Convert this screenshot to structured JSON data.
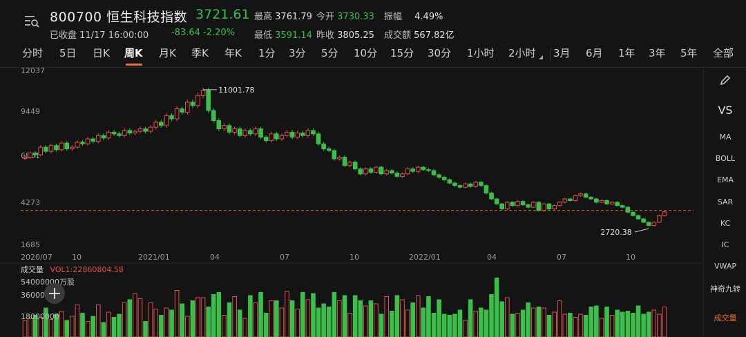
{
  "header": {
    "code_name": "800700 恒生科技指数",
    "price": "3721.61",
    "status": "已收盘 11/17 16:00:00",
    "change": "-83.64  -2.20%",
    "stats": {
      "high_label": "最高",
      "high": "3761.79",
      "open_label": "今开",
      "open": "3730.33",
      "amp_label": "振幅",
      "amp": "4.49%",
      "low_label": "最低",
      "low": "3591.14",
      "prev_label": "昨收",
      "prev": "3805.25",
      "turnover_label": "成交额",
      "turnover": "567.82亿"
    }
  },
  "tabs": [
    "分时",
    "5日",
    "日K",
    "周K",
    "月K",
    "季K",
    "年K",
    "1分",
    "3分",
    "5分",
    "10分",
    "15分",
    "30分",
    "1小时",
    "2小时",
    "3月",
    "6月",
    "1年",
    "3年",
    "5年",
    "全部"
  ],
  "active_tab": "周K",
  "right_panel": {
    "edit_icon": "pencil-icon",
    "vs": "VS",
    "indicators": [
      "MA",
      "BOLL",
      "EMA",
      "SAR",
      "KC",
      "IC",
      "VWAP",
      "神奇九转"
    ],
    "volume": "成交量"
  },
  "colors": {
    "up": "#e05050",
    "down": "#3bbf4a",
    "accent": "#e0702b",
    "bg": "#141414"
  },
  "chart_data": {
    "type": "candlestick",
    "y_ticks": [
      "12037",
      "9449",
      "6861",
      "4273",
      "1685"
    ],
    "x_ticks": [
      "2020/07",
      "10",
      "2021/01",
      "04",
      "07",
      "10",
      "2022/01",
      "04",
      "07",
      "10"
    ],
    "ylim": [
      1685,
      12037
    ],
    "annotations": {
      "high": "11001.78",
      "low": "2720.38"
    },
    "ref_line": 3805.25,
    "candles_close": [
      7000,
      7250,
      7150,
      7600,
      7350,
      7700,
      7450,
      7850,
      7500,
      7600,
      7900,
      7800,
      8100,
      7950,
      8300,
      8150,
      8500,
      8400,
      8300,
      8600,
      8450,
      8550,
      8700,
      8550,
      8800,
      9100,
      8900,
      9500,
      9300,
      9900,
      9700,
      10300,
      10100,
      10700,
      11000,
      9800,
      9200,
      8700,
      8900,
      8500,
      8700,
      8300,
      8600,
      8400,
      8700,
      8200,
      8000,
      8400,
      8100,
      8300,
      8500,
      8200,
      8450,
      8300,
      8600,
      8400,
      7800,
      7500,
      7400,
      6900,
      7000,
      6500,
      6700,
      6300,
      6000,
      6300,
      6100,
      6400,
      6000,
      6200,
      6050,
      5850,
      6000,
      6300,
      6150,
      6400,
      6250,
      6200,
      5950,
      5800,
      5650,
      5450,
      5300,
      5200,
      5400,
      5250,
      5500,
      5300,
      4850,
      4500,
      4200,
      3900,
      4300,
      4100,
      4350,
      4150,
      4000,
      4300,
      3800,
      4200,
      3900,
      4100,
      4300,
      4500,
      4400,
      4700,
      4800,
      4600,
      4500,
      4300,
      4400,
      4200,
      4300,
      4100,
      4000,
      3700,
      3500,
      3300,
      3100,
      2900,
      3100,
      3500,
      3721.61
    ],
    "volume_title": "成交量",
    "volume_value": "VOL1:22860804.58",
    "volume_y_ticks": [
      "54000000万股",
      "36000000",
      "18000000"
    ],
    "volume_bars": [
      16,
      18,
      21,
      19,
      28,
      17,
      22,
      25,
      16,
      20,
      31,
      23,
      15,
      20,
      31,
      14,
      24,
      19,
      22,
      33,
      36,
      42,
      37,
      15,
      33,
      27,
      21,
      28,
      26,
      45,
      32,
      20,
      35,
      38,
      38,
      29,
      41,
      43,
      21,
      33,
      39,
      26,
      18,
      40,
      33,
      43,
      23,
      35,
      35,
      28,
      44,
      35,
      27,
      43,
      36,
      42,
      28,
      32,
      29,
      43,
      35,
      40,
      23,
      40,
      35,
      30,
      35,
      32,
      22,
      39,
      25,
      40,
      36,
      26,
      33,
      40,
      28,
      39,
      23,
      36,
      22,
      21,
      22,
      26,
      16,
      36,
      25,
      28,
      26,
      41,
      57,
      34,
      38,
      22,
      23,
      26,
      33,
      28,
      29,
      28,
      21,
      24,
      35,
      22,
      23,
      19,
      22,
      21,
      29,
      30,
      18,
      29,
      21,
      26,
      24,
      25,
      23,
      30,
      22,
      24,
      26,
      22,
      29
    ],
    "volume_max": 60000000
  }
}
